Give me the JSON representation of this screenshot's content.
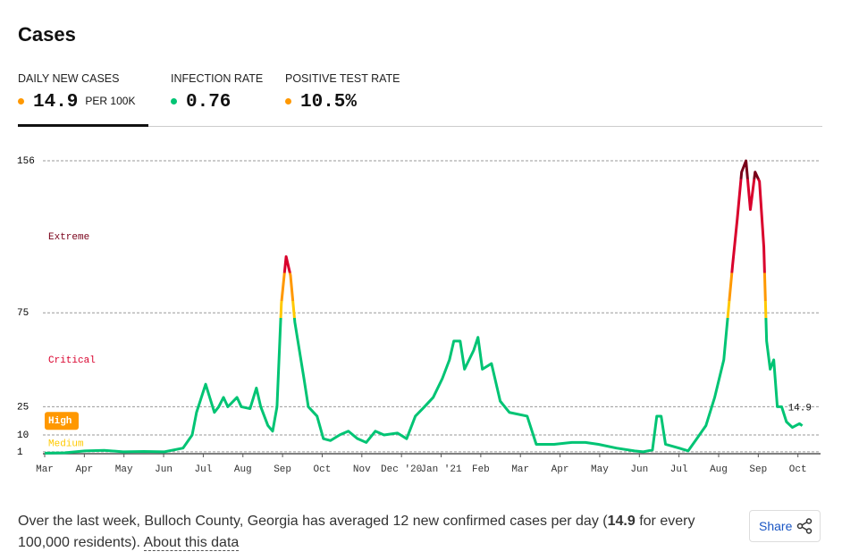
{
  "header": {
    "title": "Cases"
  },
  "metrics": [
    {
      "label": "DAILY NEW CASES",
      "value": "14.9",
      "unit": "PER 100K",
      "color": "#ff9800"
    },
    {
      "label": "INFECTION RATE",
      "value": "0.76",
      "color": "#00c474"
    },
    {
      "label": "POSITIVE TEST RATE",
      "value": "10.5%",
      "color": "#ff9800"
    }
  ],
  "chart_data": {
    "type": "line",
    "xticks": [
      {
        "value": 0,
        "label": "Mar"
      },
      {
        "value": 1,
        "label": "Apr"
      },
      {
        "value": 2,
        "label": "May"
      },
      {
        "value": 3,
        "label": "Jun"
      },
      {
        "value": 4,
        "label": "Jul"
      },
      {
        "value": 5,
        "label": "Aug"
      },
      {
        "value": 6,
        "label": "Sep"
      },
      {
        "value": 7,
        "label": "Oct"
      },
      {
        "value": 8,
        "label": "Nov"
      },
      {
        "value": 9,
        "label": "Dec '20"
      },
      {
        "value": 10,
        "label": "Jan '21"
      },
      {
        "value": 11,
        "label": "Feb"
      },
      {
        "value": 12,
        "label": "Mar"
      },
      {
        "value": 13,
        "label": "Apr"
      },
      {
        "value": 14,
        "label": "May"
      },
      {
        "value": 15,
        "label": "Jun"
      },
      {
        "value": 16,
        "label": "Jul"
      },
      {
        "value": 17,
        "label": "Aug"
      },
      {
        "value": 18,
        "label": "Sep"
      },
      {
        "value": 19,
        "label": "Oct"
      }
    ],
    "xlim": [
      0,
      19.3
    ],
    "ylim": [
      0,
      156
    ],
    "yticks": [
      1,
      10,
      25,
      75,
      156
    ],
    "grid": true,
    "levels": [
      {
        "from": 0,
        "color": "#00c474"
      },
      {
        "from": 1,
        "label": "Medium",
        "color": "#ffc900"
      },
      {
        "from": 10,
        "label": "High",
        "color": "#ff9800"
      },
      {
        "from": 25,
        "label": "Critical",
        "color": "#d9002c"
      },
      {
        "from": 75,
        "label": "Extreme",
        "color": "#790019"
      }
    ],
    "series": [
      {
        "x": [
          0,
          0.5,
          1.01,
          1.5,
          1.98,
          2.5,
          3.02,
          3.49,
          3.72,
          3.83,
          4.06,
          4.28,
          4.39,
          4.51,
          4.62,
          4.85,
          4.96,
          5.18,
          5.34,
          5.45,
          5.63,
          5.75,
          5.86,
          5.97,
          6.09,
          6.2,
          6.31,
          6.54,
          6.65,
          6.87,
          7.03,
          7.21,
          7.44,
          7.66,
          7.89,
          8.11,
          8.34,
          8.56,
          8.9,
          9.13,
          9.35,
          9.58,
          9.8,
          10.03,
          10.21,
          10.32,
          10.48,
          10.59,
          10.82,
          10.93,
          11.04,
          11.27,
          11.49,
          11.72,
          12.17,
          12.4,
          12.85,
          13.3,
          13.64,
          13.97,
          14.42,
          14.88,
          15.1,
          15.33,
          15.44,
          15.55,
          15.66,
          16.0,
          16.23,
          16.45,
          16.68,
          16.9,
          17.13,
          17.35,
          17.47,
          17.58,
          17.69,
          17.8,
          17.92,
          18.03,
          18.14,
          18.21,
          18.3,
          18.39,
          18.48,
          18.59,
          18.71,
          18.86,
          19.04,
          19.11
        ],
        "values": [
          0.3,
          0.5,
          1.5,
          1.8,
          1,
          1.2,
          1,
          3,
          10,
          22,
          37,
          22,
          25,
          30,
          25,
          30,
          25,
          24,
          35,
          25,
          15,
          12,
          25,
          80,
          105,
          95,
          70,
          40,
          25,
          20,
          8,
          7,
          10,
          12,
          8,
          6,
          12,
          10,
          11,
          8,
          20,
          25,
          30,
          40,
          50,
          60,
          60,
          45,
          55,
          62,
          45,
          48,
          28,
          22,
          20,
          5,
          5,
          6,
          6,
          5,
          3,
          1.5,
          1,
          2,
          20,
          20,
          5,
          3,
          1.5,
          8,
          15,
          30,
          50,
          100,
          125,
          150,
          156,
          130,
          150,
          145,
          110,
          60,
          45,
          50,
          25,
          25,
          17,
          14,
          16,
          14.9
        ]
      }
    ]
  },
  "footer": {
    "text": "Over the last week, Bulloch County, Georgia has averaged 12 new confirmed cases per day (",
    "bold": "14.9",
    "text_after": " for every 100,000 residents).",
    "link": "About this data",
    "share": "Share"
  }
}
